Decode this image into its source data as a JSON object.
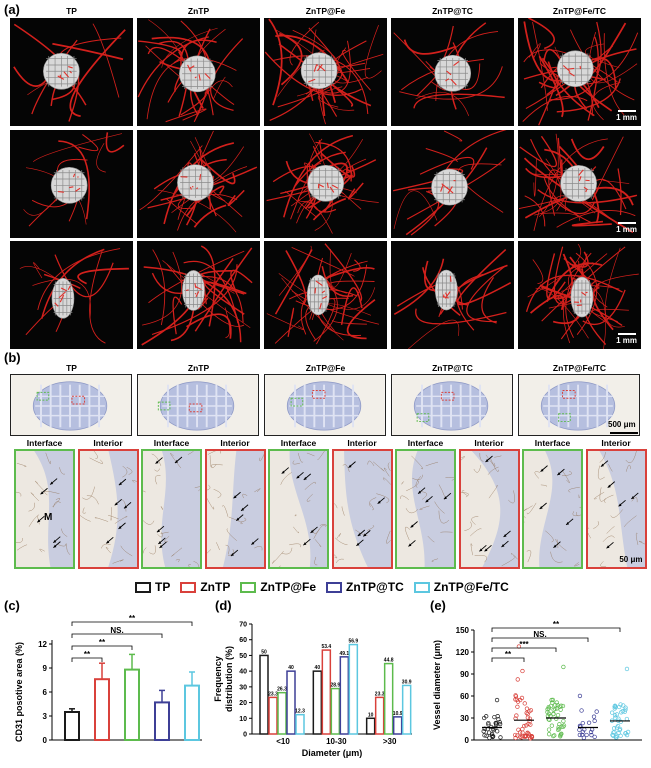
{
  "panels": {
    "a": "(a)",
    "b": "(b)",
    "c": "(c)",
    "d": "(d)",
    "e": "(e)"
  },
  "groups": [
    "TP",
    "ZnTP",
    "ZnTP@Fe",
    "ZnTP@TC",
    "ZnTP@Fe/TC"
  ],
  "panel_a": {
    "scale_bar_label": "1 mm"
  },
  "panel_b": {
    "scale_top": "500 μm",
    "scale_bottom": "50 μm",
    "interface_label": "Interface",
    "interior_label": "Interior",
    "marker_m": "M"
  },
  "legend": [
    {
      "name": "TP",
      "color": "#1a1a1a"
    },
    {
      "name": "ZnTP",
      "color": "#d9413b"
    },
    {
      "name": "ZnTP@Fe",
      "color": "#5dbb4d"
    },
    {
      "name": "ZnTP@TC",
      "color": "#3d3f96"
    },
    {
      "name": "ZnTP@Fe/TC",
      "color": "#5cc7e0"
    }
  ],
  "chart_data": [
    {
      "id": "c",
      "type": "bar",
      "ylabel": "CD31 posotive area (%)",
      "ylim": [
        0,
        12
      ],
      "yticks": [
        "0",
        "3",
        "6",
        "9",
        "12"
      ],
      "values": [
        3.5,
        7.6,
        8.8,
        4.7,
        6.8
      ],
      "errors": [
        0.4,
        2.0,
        1.9,
        1.5,
        1.7
      ],
      "significance": [
        {
          "label": "**",
          "from": 0,
          "to": 1
        },
        {
          "label": "**",
          "from": 0,
          "to": 2
        },
        {
          "label": "NS.",
          "from": 0,
          "to": 3
        },
        {
          "label": "**",
          "from": 0,
          "to": 4
        }
      ]
    },
    {
      "id": "d",
      "type": "bar",
      "ylabel": "Frequency distribution (%)",
      "xlabel": "Diameter (μm)",
      "ylim": [
        0,
        70
      ],
      "yticks": [
        "0",
        "10",
        "20",
        "30",
        "40",
        "50",
        "60",
        "70"
      ],
      "categories": [
        "<10",
        "10-30",
        ">30"
      ],
      "series": [
        {
          "values": [
            50,
            40,
            10
          ],
          "labels": [
            "50",
            "40",
            "10"
          ]
        },
        {
          "values": [
            23.3,
            53.4,
            23.3
          ],
          "labels": [
            "23.3",
            "53.4",
            "23.3"
          ]
        },
        {
          "values": [
            26.3,
            28.9,
            44.8
          ],
          "labels": [
            "26.3",
            "28.9",
            "44.8"
          ]
        },
        {
          "values": [
            40,
            49.1,
            10.9
          ],
          "labels": [
            "40",
            "49.1",
            "10.9"
          ]
        },
        {
          "values": [
            12.3,
            56.9,
            30.9
          ],
          "labels": [
            "12.3",
            "56.9",
            "30.9"
          ]
        }
      ]
    },
    {
      "id": "e",
      "type": "scatter",
      "ylabel": "Vessel diameter (μm)",
      "ylim": [
        0,
        150
      ],
      "yticks": [
        "0",
        "30",
        "60",
        "90",
        "120",
        "150"
      ],
      "means": [
        17,
        27,
        30,
        17,
        26
      ],
      "significance": [
        {
          "label": "**",
          "from": 0,
          "to": 1
        },
        {
          "label": "***",
          "from": 0,
          "to": 2
        },
        {
          "label": "NS.",
          "from": 0,
          "to": 3
        },
        {
          "label": "**",
          "from": 0,
          "to": 4
        }
      ]
    }
  ]
}
